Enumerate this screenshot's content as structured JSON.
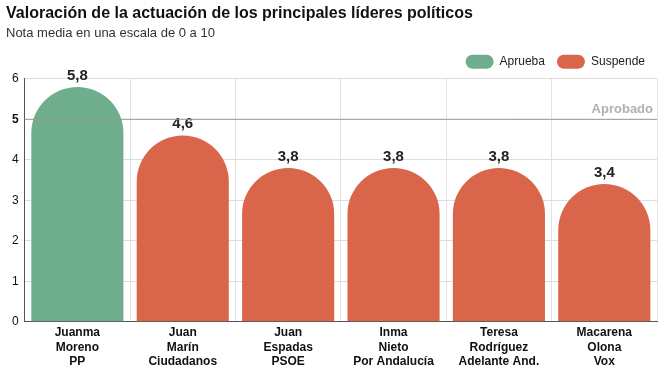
{
  "chart_data": {
    "type": "bar",
    "title": "Valoración de la actuación de los principales líderes políticos",
    "subtitle": "Nota media en una escala de 0 a 10",
    "categories": [
      [
        "Juanma",
        "Moreno",
        "PP"
      ],
      [
        "Juan",
        "Marín",
        "Ciudadanos"
      ],
      [
        "Juan",
        "Espadas",
        "PSOE"
      ],
      [
        "Inma",
        "Nieto",
        "Por Andalucía"
      ],
      [
        "Teresa",
        "Rodríguez",
        "Adelante And."
      ],
      [
        "Macarena",
        "Olona",
        "Vox"
      ]
    ],
    "series": [
      {
        "name": "Aprueba",
        "color": "#6fae8c",
        "values": [
          5.8,
          null,
          null,
          null,
          null,
          null
        ],
        "value_labels": [
          "5,8",
          null,
          null,
          null,
          null,
          null
        ]
      },
      {
        "name": "Suspende",
        "color": "#d9664b",
        "values": [
          null,
          4.6,
          3.8,
          3.8,
          3.8,
          3.4
        ],
        "value_labels": [
          null,
          "4,6",
          "3,8",
          "3,8",
          "3,8",
          "3,4"
        ]
      }
    ],
    "ylim": [
      0,
      6
    ],
    "yticks": [
      0,
      1,
      2,
      3,
      4,
      5,
      6
    ],
    "grid": true,
    "legend": "top-right",
    "data_labels": true,
    "annotations": [
      {
        "y": 5,
        "label": "Aprobado"
      }
    ]
  }
}
